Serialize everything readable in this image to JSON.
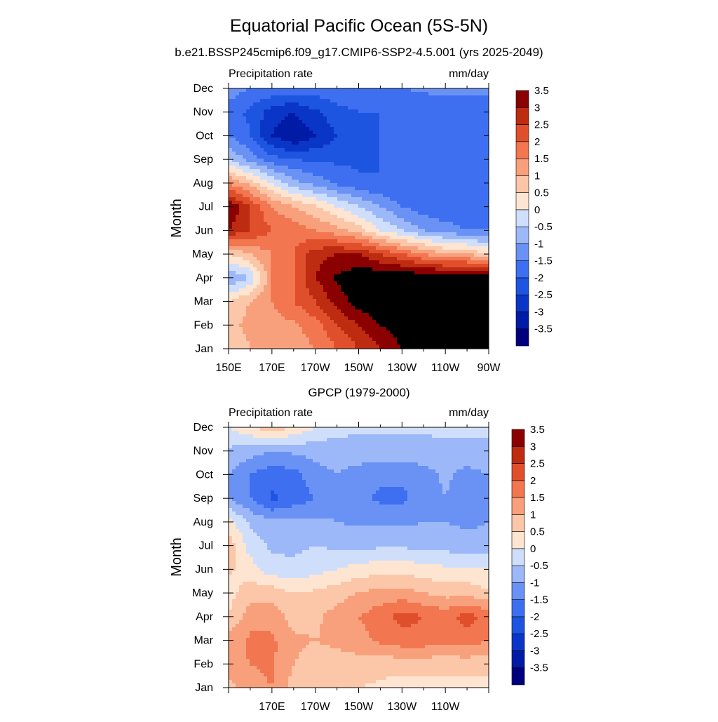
{
  "figure": {
    "title": "Equatorial Pacific Ocean (5S-5N)",
    "subtitle": "b.e21.BSSP245cmip6.f09_g17.CMIP6-SSP2-4.5.001 (yrs 2025-2049)"
  },
  "colorbar": {
    "levels": [
      -3.5,
      -3,
      -2.5,
      -2,
      -1.5,
      -1,
      -0.5,
      0,
      0.5,
      1,
      1.5,
      2,
      2.5,
      3,
      3.5
    ],
    "labels": [
      "-3.5",
      "-3",
      "-2.5",
      "-2",
      "-1.5",
      "-1",
      "-0.5",
      "0",
      "0.5",
      "1",
      "1.5",
      "2",
      "2.5",
      "3",
      "3.5"
    ],
    "colors": [
      "#00007f",
      "#001ba6",
      "#0a36c8",
      "#1e55e0",
      "#3d6ff0",
      "#6a92f5",
      "#9cb8f8",
      "#cfdffb",
      "#fde5d2",
      "#fcc6a8",
      "#f8a07c",
      "#f27650",
      "#e04f2c",
      "#bd2c10",
      "#8b0000"
    ]
  },
  "chart_data": [
    {
      "type": "heatmap",
      "title": "",
      "left_label": "Precipitation rate",
      "right_label": "mm/day",
      "xlabel": "",
      "ylabel": "Month",
      "x": [
        150,
        160,
        170,
        180,
        190,
        200,
        210,
        220,
        230,
        240,
        250,
        260,
        270
      ],
      "xlim": [
        150,
        270
      ],
      "xtick_values": [
        150,
        170,
        190,
        210,
        230,
        250,
        270
      ],
      "xtick_labels": [
        "150E",
        "170E",
        "170W",
        "150W",
        "130W",
        "110W",
        "90W"
      ],
      "y": [
        "Jan",
        "Feb",
        "Mar",
        "Apr",
        "May",
        "Jun",
        "Jul",
        "Aug",
        "Sep",
        "Oct",
        "Nov",
        "Dec"
      ],
      "z": [
        [
          0.5,
          1.0,
          1.2,
          1.2,
          1.5,
          2.0,
          2.5,
          3.0,
          3.5,
          3.5,
          3.5,
          3.5,
          3.5
        ],
        [
          0.8,
          1.2,
          1.3,
          1.4,
          1.8,
          2.5,
          3.0,
          3.5,
          3.8,
          3.9,
          3.9,
          3.9,
          3.8
        ],
        [
          0.5,
          1.0,
          1.5,
          2.0,
          2.5,
          3.2,
          3.8,
          4.0,
          4.0,
          4.0,
          4.0,
          4.0,
          4.0
        ],
        [
          -1.0,
          -0.5,
          1.5,
          2.0,
          3.0,
          3.6,
          3.9,
          4.0,
          4.0,
          4.0,
          4.0,
          4.0,
          3.9
        ],
        [
          0.5,
          1.0,
          1.5,
          2.0,
          2.8,
          3.0,
          3.0,
          2.5,
          2.0,
          1.5,
          1.0,
          1.0,
          0.5
        ],
        [
          3.0,
          2.5,
          2.0,
          1.8,
          1.5,
          1.2,
          0.8,
          0.0,
          -0.5,
          -1.0,
          -1.2,
          -1.5,
          -1.5
        ],
        [
          3.5,
          2.5,
          1.5,
          1.0,
          0.6,
          0.0,
          -0.5,
          -1.0,
          -1.5,
          -1.8,
          -2.0,
          -2.0,
          -2.0
        ],
        [
          1.5,
          0.8,
          0.0,
          -0.8,
          -1.2,
          -1.6,
          -1.9,
          -2.0,
          -2.0,
          -2.0,
          -2.0,
          -2.0,
          -2.0
        ],
        [
          -0.5,
          -1.2,
          -1.8,
          -2.0,
          -2.1,
          -2.1,
          -2.1,
          -2.0,
          -2.0,
          -2.0,
          -2.0,
          -2.0,
          -2.0
        ],
        [
          -1.5,
          -2.0,
          -3.0,
          -3.5,
          -3.0,
          -2.5,
          -2.2,
          -2.0,
          -2.0,
          -2.0,
          -2.0,
          -2.0,
          -2.0
        ],
        [
          -1.8,
          -2.1,
          -2.8,
          -3.0,
          -2.6,
          -2.2,
          -2.0,
          -2.0,
          -2.0,
          -1.9,
          -1.9,
          -1.9,
          -1.9
        ],
        [
          -1.2,
          -1.5,
          -1.6,
          -1.7,
          -1.7,
          -1.6,
          -1.5,
          -1.5,
          -1.5,
          -1.4,
          -1.3,
          -1.3,
          -1.3
        ]
      ]
    },
    {
      "type": "heatmap",
      "title": "GPCP (1979-2000)",
      "left_label": "Precipitation rate",
      "right_label": "mm/day",
      "xlabel": "",
      "ylabel": "Month",
      "x": [
        150,
        160,
        170,
        180,
        190,
        200,
        210,
        220,
        230,
        240,
        250,
        260,
        270
      ],
      "xlim": [
        150,
        270
      ],
      "xtick_values": [
        170,
        190,
        210,
        230,
        250
      ],
      "xtick_labels": [
        "170E",
        "170W",
        "150W",
        "130W",
        "110W"
      ],
      "y": [
        "Jan",
        "Feb",
        "Mar",
        "Apr",
        "May",
        "Jun",
        "Jul",
        "Aug",
        "Sep",
        "Oct",
        "Nov",
        "Dec"
      ],
      "z": [
        [
          0.8,
          1.3,
          1.5,
          0.8,
          0.6,
          0.6,
          0.5,
          0.4,
          0.3,
          0.3,
          0.3,
          0.3,
          0.3
        ],
        [
          1.3,
          1.5,
          1.6,
          1.0,
          0.8,
          0.8,
          0.8,
          0.7,
          0.7,
          0.7,
          0.7,
          0.7,
          0.7
        ],
        [
          1.2,
          1.6,
          1.6,
          1.1,
          1.0,
          1.1,
          1.3,
          1.6,
          1.8,
          1.8,
          1.6,
          1.8,
          1.5
        ],
        [
          0.5,
          1.3,
          1.3,
          0.8,
          0.9,
          1.2,
          1.5,
          1.8,
          2.2,
          2.0,
          1.8,
          2.2,
          1.8
        ],
        [
          0.3,
          0.8,
          0.8,
          0.5,
          0.6,
          0.8,
          1.0,
          1.2,
          1.2,
          1.0,
          0.8,
          0.8,
          0.6
        ],
        [
          0.6,
          0.2,
          -0.3,
          -0.4,
          -0.2,
          0.0,
          0.2,
          0.3,
          0.3,
          0.2,
          0.1,
          0.1,
          0.0
        ],
        [
          0.8,
          -0.2,
          -0.6,
          -0.6,
          -0.5,
          -0.6,
          -0.6,
          -0.6,
          -0.6,
          -0.6,
          -0.7,
          -0.8,
          -0.8
        ],
        [
          0.2,
          -0.6,
          -0.9,
          -0.9,
          -0.9,
          -1.0,
          -1.1,
          -1.1,
          -1.1,
          -1.0,
          -1.0,
          -1.1,
          -1.0
        ],
        [
          -1.0,
          -1.5,
          -2.1,
          -1.8,
          -1.5,
          -1.2,
          -1.4,
          -1.6,
          -1.6,
          -1.3,
          -1.0,
          -1.3,
          -1.2
        ],
        [
          -1.0,
          -1.5,
          -1.8,
          -1.7,
          -1.2,
          -1.0,
          -1.2,
          -1.4,
          -1.4,
          -1.2,
          -0.9,
          -1.2,
          -1.0
        ],
        [
          -0.6,
          -0.8,
          -1.0,
          -0.9,
          -0.8,
          -0.8,
          -0.7,
          -0.7,
          -0.7,
          -0.7,
          -0.6,
          -0.6,
          -0.6
        ],
        [
          0.0,
          0.4,
          0.9,
          0.4,
          0.0,
          -0.3,
          -0.4,
          -0.4,
          -0.4,
          -0.4,
          -0.4,
          -0.4,
          -0.4
        ]
      ]
    }
  ]
}
